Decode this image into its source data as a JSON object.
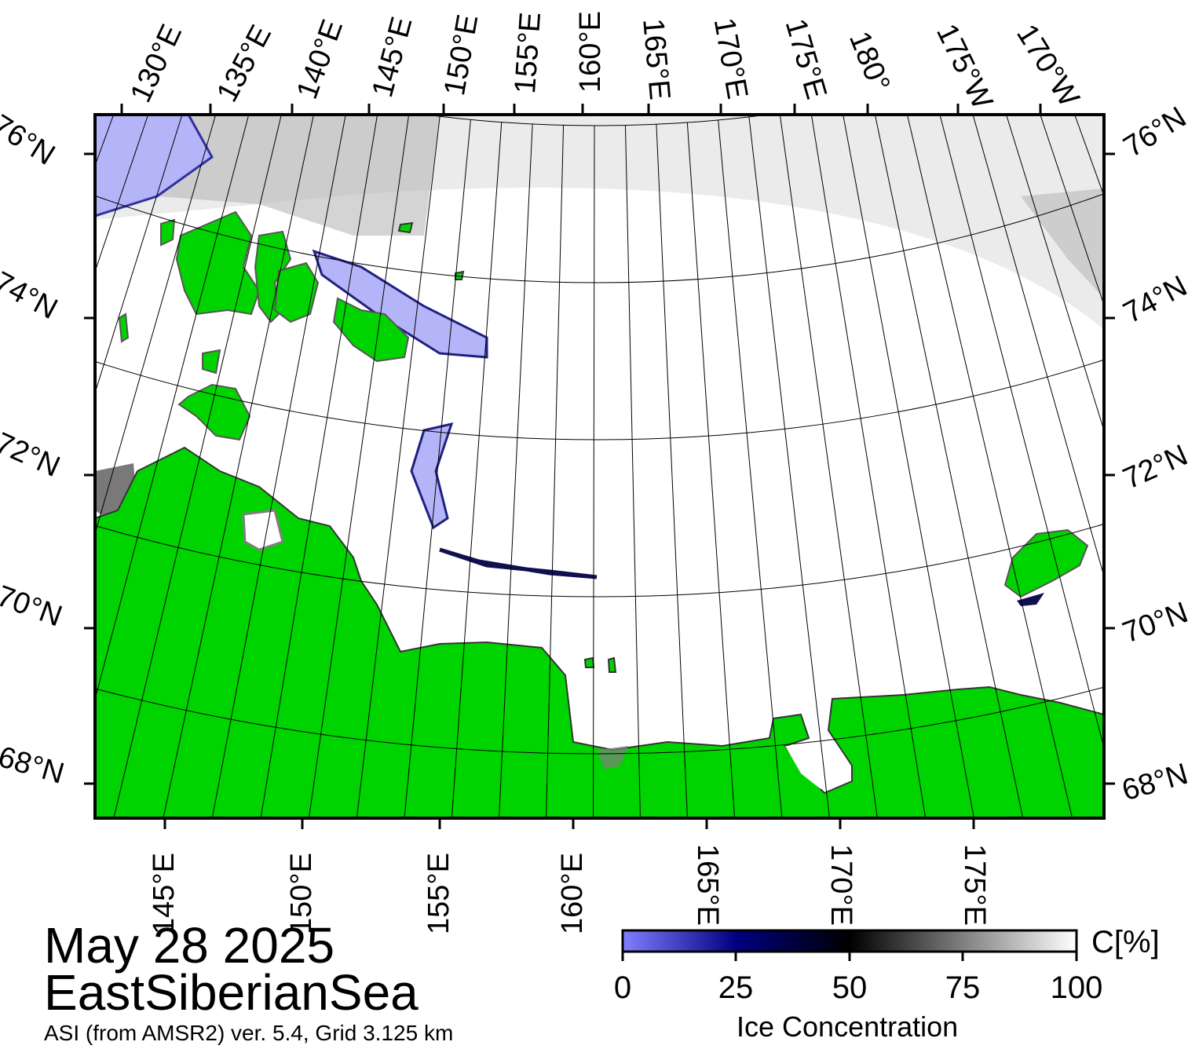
{
  "map": {
    "date": "May 28 2025",
    "region": "EastSiberianSea",
    "product": "ASI (from AMSR2) ver. 5.4,  Grid 3.125 km",
    "colors": {
      "land": "#00d400",
      "land_mask_gray": "#7f7f7f",
      "ocean_open": "#ffffff",
      "low_ice": "#b4b4f8",
      "frame": "#000000"
    },
    "top_lon_labels": [
      "130°E",
      "135°E",
      "140°E",
      "145°E",
      "150°E",
      "155°E",
      "160°E",
      "165°E",
      "170°E",
      "175°E",
      "180°",
      "175°W",
      "170°W"
    ],
    "bottom_lon_labels": [
      "145°E",
      "150°E",
      "155°E",
      "160°E",
      "165°E",
      "170°E",
      "175°E"
    ],
    "left_lat_labels": [
      "76°N",
      "74°N",
      "72°N",
      "70°N",
      "68°N"
    ],
    "right_lat_labels": [
      "76°N",
      "74°N",
      "72°N",
      "70°N",
      "68°N"
    ]
  },
  "colorbar": {
    "unit": "C[%]",
    "label": "Ice Concentration",
    "ticks": [
      "0",
      "25",
      "50",
      "75",
      "100"
    ],
    "stops": [
      {
        "offset": 0,
        "color": "#8080ff"
      },
      {
        "offset": 0.25,
        "color": "#000080"
      },
      {
        "offset": 0.5,
        "color": "#000000"
      },
      {
        "offset": 1,
        "color": "#ffffff"
      }
    ]
  }
}
